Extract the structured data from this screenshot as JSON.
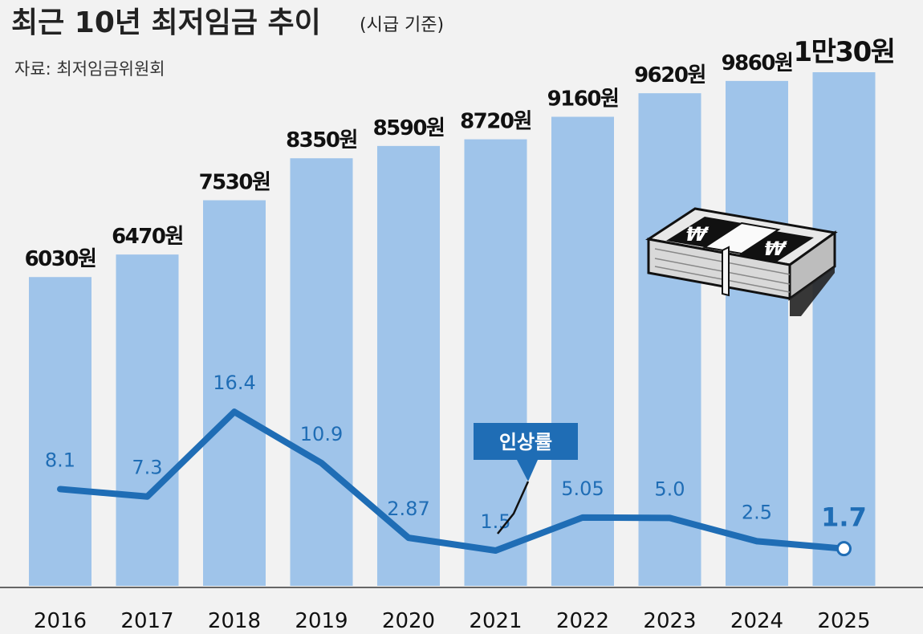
{
  "title": "최근 10년 최저임금 추이",
  "subtitle": "(시급 기준)",
  "source": "자료: 최저임금위원회",
  "legend_label": "인상률",
  "icon": "money-bundle-icon",
  "colors": {
    "bar": "#9fc4ea",
    "line": "#1f6db5",
    "background": "#f2f2f2",
    "legend_bg": "#1f6db5"
  },
  "chart_data": {
    "type": "bar",
    "categories": [
      "2016",
      "2017",
      "2018",
      "2019",
      "2020",
      "2021",
      "2022",
      "2023",
      "2024",
      "2025"
    ],
    "series": [
      {
        "values": [
          6030,
          6470,
          7530,
          8350,
          8590,
          8720,
          9160,
          9620,
          9860,
          10030
        ],
        "labels": [
          "6030원",
          "6470원",
          "7530원",
          "8350원",
          "8590원",
          "8720원",
          "9160원",
          "9620원",
          "9860원",
          "1만30원"
        ]
      },
      {
        "name": "인상률",
        "type": "line",
        "values": [
          8.1,
          7.3,
          16.4,
          10.9,
          2.87,
          1.5,
          5.05,
          5.0,
          2.5,
          1.7
        ],
        "labels": [
          "8.1",
          "7.3",
          "16.4",
          "10.9",
          "2.87",
          "1.5",
          "5.05",
          "5.0",
          "2.5",
          "1.7"
        ]
      }
    ]
  }
}
